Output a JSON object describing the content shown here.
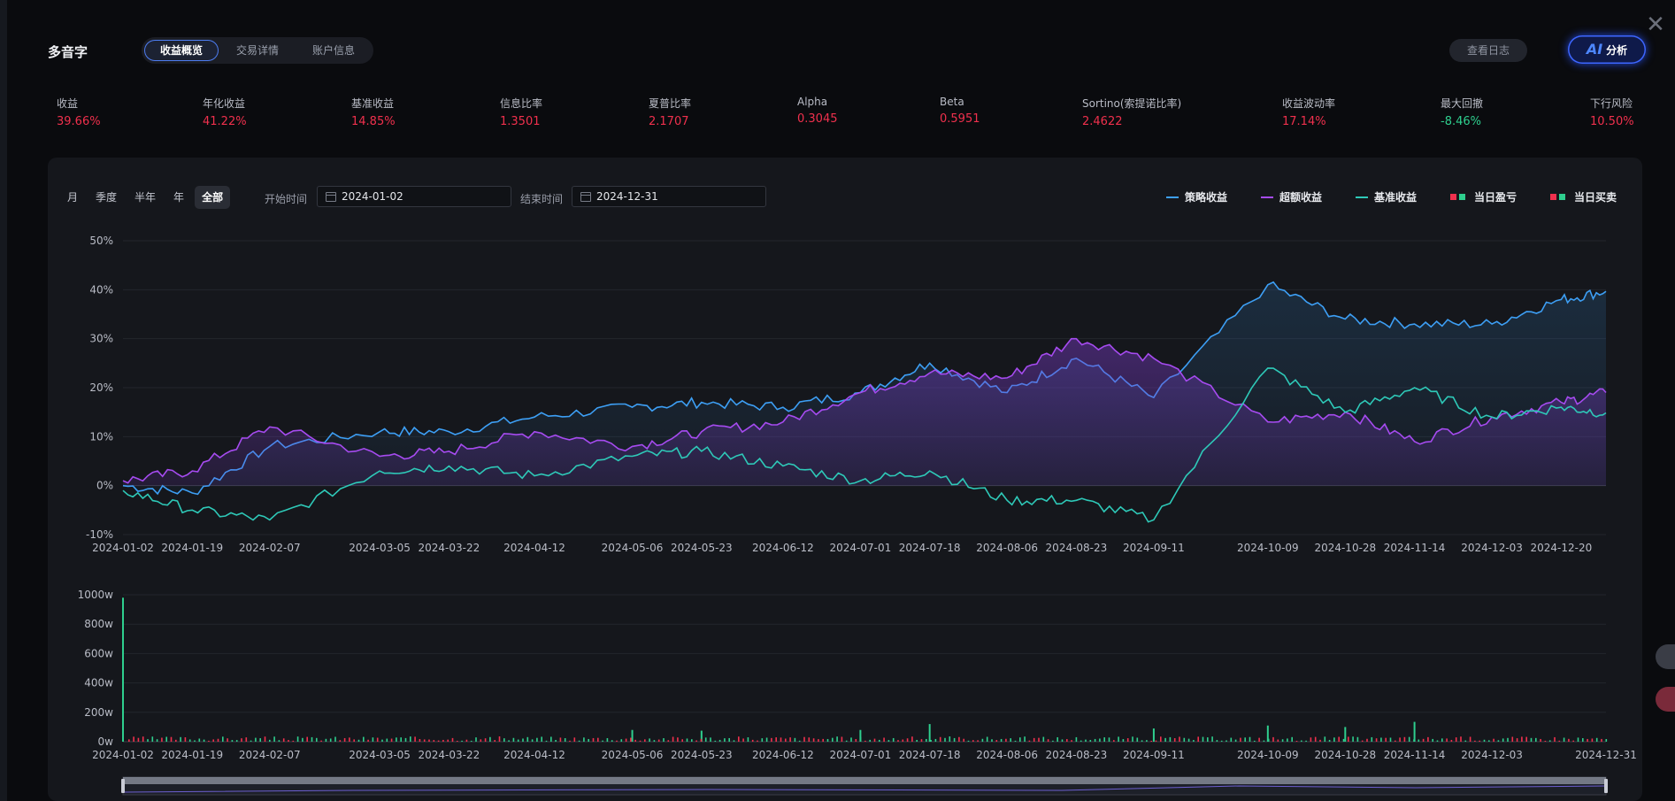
{
  "header": {
    "title": "多音字",
    "tabs": [
      {
        "label": "收益概览",
        "active": true
      },
      {
        "label": "交易详情",
        "active": false
      },
      {
        "label": "账户信息",
        "active": false
      }
    ],
    "log_button": "查看日志",
    "ai_button": {
      "ai": "AI",
      "label": "分析"
    }
  },
  "metrics": [
    {
      "label": "收益",
      "value": "39.66%",
      "tone": "red"
    },
    {
      "label": "年化收益",
      "value": "41.22%",
      "tone": "red"
    },
    {
      "label": "基准收益",
      "value": "14.85%",
      "tone": "red"
    },
    {
      "label": "信息比率",
      "value": "1.3501",
      "tone": "red"
    },
    {
      "label": "夏普比率",
      "value": "2.1707",
      "tone": "red"
    },
    {
      "label": "Alpha",
      "value": "0.3045",
      "tone": "red"
    },
    {
      "label": "Beta",
      "value": "0.5951",
      "tone": "red"
    },
    {
      "label": "Sortino(索提诺比率)",
      "value": "2.4622",
      "tone": "red"
    },
    {
      "label": "收益波动率",
      "value": "17.14%",
      "tone": "red"
    },
    {
      "label": "最大回撤",
      "value": "-8.46%",
      "tone": "green"
    },
    {
      "label": "下行风险",
      "value": "10.50%",
      "tone": "red"
    }
  ],
  "controls": {
    "periods": [
      {
        "label": "月",
        "active": false
      },
      {
        "label": "季度",
        "active": false
      },
      {
        "label": "半年",
        "active": false
      },
      {
        "label": "年",
        "active": false
      },
      {
        "label": "全部",
        "active": true
      }
    ],
    "start_label": "开始时间",
    "start_value": "2024-01-02",
    "end_label": "结束时间",
    "end_value": "2024-12-31"
  },
  "legend": [
    {
      "name": "策略收益",
      "kind": "line",
      "colors": [
        "#3d9ff5"
      ]
    },
    {
      "name": "超额收益",
      "kind": "line",
      "colors": [
        "#a64bf0"
      ]
    },
    {
      "name": "基准收益",
      "kind": "line",
      "colors": [
        "#2ec9b8"
      ]
    },
    {
      "name": "当日盈亏",
      "kind": "squares",
      "colors": [
        "#f0304d",
        "#2ecf8e"
      ]
    },
    {
      "name": "当日买卖",
      "kind": "squares",
      "colors": [
        "#f0304d",
        "#2ecf8e"
      ]
    }
  ],
  "chart_data": [
    {
      "type": "line",
      "x_ticks": [
        "2024-01-02",
        "2024-01-19",
        "2024-02-07",
        "2024-03-05",
        "2024-03-22",
        "2024-04-12",
        "2024-05-06",
        "2024-05-23",
        "2024-06-12",
        "2024-07-01",
        "2024-07-18",
        "2024-08-06",
        "2024-08-23",
        "2024-09-11",
        "2024-10-09",
        "2024-10-28",
        "2024-11-14",
        "2024-12-03",
        "2024-12-20"
      ],
      "y_ticks": [
        "50%",
        "40%",
        "30%",
        "20%",
        "10%",
        "0%",
        "-10%"
      ],
      "ylim": [
        -10,
        50
      ],
      "grid": true,
      "legend_position": "top-right",
      "series": [
        {
          "name": "策略收益",
          "color": "#3d9ff5",
          "x": [
            "2024-01-02",
            "2024-01-19",
            "2024-02-07",
            "2024-03-05",
            "2024-03-22",
            "2024-04-12",
            "2024-05-06",
            "2024-05-23",
            "2024-06-12",
            "2024-07-01",
            "2024-07-18",
            "2024-08-06",
            "2024-08-23",
            "2024-09-11",
            "2024-10-09",
            "2024-10-28",
            "2024-11-14",
            "2024-12-03",
            "2024-12-20",
            "2024-12-31"
          ],
          "y": [
            0,
            -1.5,
            8,
            11,
            11,
            14,
            16,
            17,
            16,
            19,
            25,
            19,
            26,
            18,
            41,
            34,
            33,
            33,
            38,
            39.66
          ]
        },
        {
          "name": "超额收益",
          "color": "#a64bf0",
          "x": [
            "2024-01-02",
            "2024-01-19",
            "2024-02-07",
            "2024-03-05",
            "2024-03-22",
            "2024-04-12",
            "2024-05-06",
            "2024-05-23",
            "2024-06-12",
            "2024-07-01",
            "2024-07-18",
            "2024-08-06",
            "2024-08-23",
            "2024-09-11",
            "2024-10-09",
            "2024-10-28",
            "2024-11-14",
            "2024-12-03",
            "2024-12-20",
            "2024-12-31"
          ],
          "y": [
            1,
            3,
            12,
            6,
            7,
            11,
            8,
            11,
            13,
            19,
            23,
            22,
            30,
            26,
            13,
            15,
            9,
            14,
            17,
            19
          ]
        },
        {
          "name": "基准收益",
          "color": "#2ec9b8",
          "x": [
            "2024-01-02",
            "2024-01-19",
            "2024-02-07",
            "2024-03-05",
            "2024-03-22",
            "2024-04-12",
            "2024-05-06",
            "2024-05-23",
            "2024-06-12",
            "2024-07-01",
            "2024-07-18",
            "2024-08-06",
            "2024-08-23",
            "2024-09-11",
            "2024-10-09",
            "2024-10-28",
            "2024-11-14",
            "2024-12-03",
            "2024-12-20",
            "2024-12-31"
          ],
          "y": [
            -1,
            -5,
            -7,
            3,
            4,
            2,
            6,
            7,
            4,
            1,
            3,
            -3,
            -3,
            -7,
            24,
            15,
            20,
            14,
            16,
            14.85
          ]
        }
      ]
    },
    {
      "type": "bar",
      "x_ticks": [
        "2024-01-02",
        "2024-01-19",
        "2024-02-07",
        "2024-03-05",
        "2024-03-22",
        "2024-04-12",
        "2024-05-06",
        "2024-05-23",
        "2024-06-12",
        "2024-07-01",
        "2024-07-18",
        "2024-08-06",
        "2024-08-23",
        "2024-09-11",
        "2024-10-09",
        "2024-10-28",
        "2024-11-14",
        "2024-12-03",
        "2024-12-31"
      ],
      "y_ticks": [
        "1000w",
        "800w",
        "600w",
        "400w",
        "200w",
        "0w"
      ],
      "ylim": [
        0,
        1000
      ],
      "grid": true,
      "categories": [
        "2024-01-02",
        "2024-05-06",
        "2024-05-23",
        "2024-07-01",
        "2024-07-18",
        "2024-09-11",
        "2024-10-09",
        "2024-10-28",
        "2024-11-14"
      ],
      "values": [
        980,
        80,
        75,
        80,
        120,
        90,
        110,
        100,
        135
      ]
    }
  ]
}
